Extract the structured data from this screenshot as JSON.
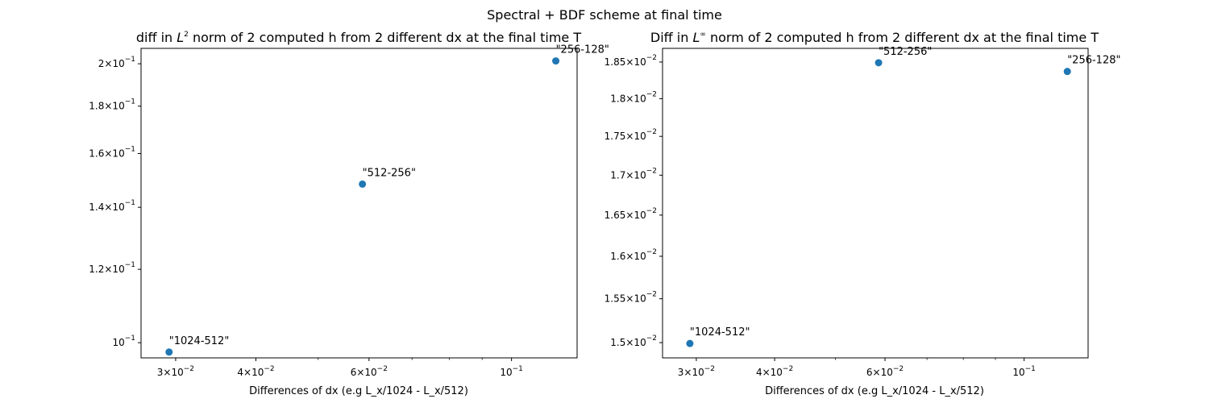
{
  "figure": {
    "suptitle": "Spectral + BDF scheme at final time"
  },
  "chart_data": [
    {
      "type": "scatter",
      "title_pre": "diff in ",
      "title_math_base": "L",
      "title_math_sup": "2",
      "title_post": " norm of 2 computed h from 2 different dx at the final time T",
      "xlabel": "Differences of dx (e.g L_x/1024 - L_x/512)",
      "ylabel": "",
      "xscale": "log",
      "yscale": "log",
      "xlim": [
        0.0265,
        0.1265
      ],
      "ylim": [
        0.0963,
        0.2078
      ],
      "grid": false,
      "color": "#1f77b4",
      "points": [
        {
          "x": 0.0293,
          "y": 0.0977,
          "label": "\"1024-512\""
        },
        {
          "x": 0.0586,
          "y": 0.1483,
          "label": "\"512-256\""
        },
        {
          "x": 0.1172,
          "y": 0.2014,
          "label": "\"256-128\""
        }
      ],
      "xticks": [
        {
          "v": 0.03,
          "mant": "3×10",
          "exp": "−2"
        },
        {
          "v": 0.04,
          "mant": "4×10",
          "exp": "−2"
        },
        {
          "v": 0.06,
          "mant": "6×10",
          "exp": "−2"
        },
        {
          "v": 0.1,
          "mant": "10",
          "exp": "−1"
        }
      ],
      "xminor": [
        0.05,
        0.07,
        0.08,
        0.09
      ],
      "yticks": [
        {
          "v": 0.1,
          "mant": "10",
          "exp": "−1"
        },
        {
          "v": 0.12,
          "mant": "1.2×10",
          "exp": "−1"
        },
        {
          "v": 0.14,
          "mant": "1.4×10",
          "exp": "−1"
        },
        {
          "v": 0.16,
          "mant": "1.6×10",
          "exp": "−1"
        },
        {
          "v": 0.18,
          "mant": "1.8×10",
          "exp": "−1"
        },
        {
          "v": 0.2,
          "mant": "2×10",
          "exp": "−1"
        }
      ]
    },
    {
      "type": "scatter",
      "title_pre": "Diff in ",
      "title_math_base": "L",
      "title_math_sup": "∞",
      "title_post": " norm of 2 computed h from 2 different dx at the final time T",
      "xlabel": "Differences of dx (e.g L_x/1024 - L_x/512)",
      "ylabel": "",
      "xscale": "log",
      "yscale": "log",
      "xlim": [
        0.0265,
        0.1265
      ],
      "ylim": [
        0.01483,
        0.01869
      ],
      "grid": false,
      "color": "#1f77b4",
      "points": [
        {
          "x": 0.0293,
          "y": 0.01499,
          "label": "\"1024-512\""
        },
        {
          "x": 0.0586,
          "y": 0.01849,
          "label": "\"512-256\""
        },
        {
          "x": 0.1172,
          "y": 0.01837,
          "label": "\"256-128\""
        }
      ],
      "xticks": [
        {
          "v": 0.03,
          "mant": "3×10",
          "exp": "−2"
        },
        {
          "v": 0.04,
          "mant": "4×10",
          "exp": "−2"
        },
        {
          "v": 0.06,
          "mant": "6×10",
          "exp": "−2"
        },
        {
          "v": 0.1,
          "mant": "10",
          "exp": "−1"
        }
      ],
      "xminor": [
        0.05,
        0.07,
        0.08,
        0.09
      ],
      "yticks": [
        {
          "v": 0.015,
          "mant": "1.5×10",
          "exp": "−2"
        },
        {
          "v": 0.0155,
          "mant": "1.55×10",
          "exp": "−2"
        },
        {
          "v": 0.016,
          "mant": "1.6×10",
          "exp": "−2"
        },
        {
          "v": 0.0165,
          "mant": "1.65×10",
          "exp": "−2"
        },
        {
          "v": 0.017,
          "mant": "1.7×10",
          "exp": "−2"
        },
        {
          "v": 0.0175,
          "mant": "1.75×10",
          "exp": "−2"
        },
        {
          "v": 0.018,
          "mant": "1.8×10",
          "exp": "−2"
        },
        {
          "v": 0.0185,
          "mant": "1.85×10",
          "exp": "−2"
        }
      ]
    }
  ]
}
